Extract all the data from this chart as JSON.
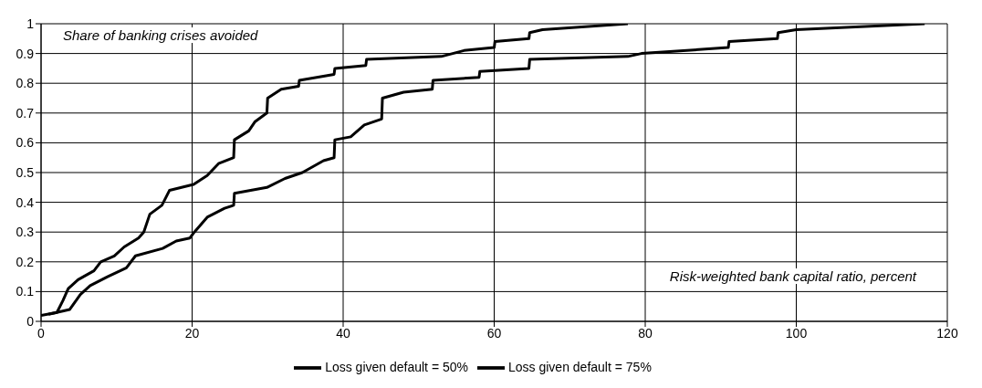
{
  "chart_data": {
    "type": "line",
    "ylabel": "Share of banking crises avoided",
    "xlabel": "Risk-weighted bank capital ratio, percent",
    "xlim": [
      0,
      120
    ],
    "xticks": [
      0,
      20,
      40,
      60,
      80,
      100,
      120
    ],
    "ylim": [
      0,
      1
    ],
    "yticks": [
      0,
      0.1,
      0.2,
      0.3,
      0.4,
      0.5,
      0.6,
      0.7,
      0.8,
      0.9,
      1
    ],
    "grid": true,
    "legend": "bottom",
    "marker": "none",
    "line_style": "solid",
    "series": [
      {
        "name": "Loss given default = 50%",
        "color": "#000000",
        "x": [
          0,
          2.1,
          2.9,
          3.6,
          4.9,
          7,
          7.9,
          9.7,
          11,
          12.9,
          13.6,
          14.4,
          16,
          17,
          20.2,
          22,
          23.5,
          25.5,
          25.6,
          27.5,
          28.3,
          29.9,
          30,
          31.8,
          34.1,
          34.2,
          38.8,
          38.9,
          43,
          43.1,
          53,
          56,
          60,
          60.1,
          64.6,
          64.7,
          66.4,
          77.7
        ],
        "values": [
          0.02,
          0.03,
          0.07,
          0.11,
          0.14,
          0.17,
          0.2,
          0.22,
          0.25,
          0.28,
          0.3,
          0.36,
          0.39,
          0.44,
          0.46,
          0.49,
          0.53,
          0.55,
          0.61,
          0.64,
          0.67,
          0.7,
          0.75,
          0.78,
          0.79,
          0.81,
          0.83,
          0.85,
          0.86,
          0.88,
          0.89,
          0.91,
          0.92,
          0.94,
          0.95,
          0.97,
          0.98,
          1
        ]
      },
      {
        "name": "Loss given default = 75%",
        "color": "#000000",
        "x": [
          1,
          3.8,
          5.2,
          6.5,
          8.8,
          11.3,
          12.5,
          16.1,
          17.9,
          19.7,
          20.3,
          22,
          24.3,
          25.5,
          25.6,
          29.9,
          32.3,
          34.6,
          37.4,
          38.8,
          38.9,
          41,
          42.8,
          45.1,
          45.2,
          48,
          51.8,
          51.9,
          58,
          58.1,
          64.6,
          64.7,
          77.7,
          79.5,
          91,
          91.1,
          97.5,
          97.6,
          100,
          117
        ],
        "values": [
          0.024,
          0.04,
          0.09,
          0.12,
          0.15,
          0.18,
          0.22,
          0.245,
          0.27,
          0.28,
          0.3,
          0.35,
          0.38,
          0.39,
          0.43,
          0.45,
          0.48,
          0.5,
          0.54,
          0.55,
          0.61,
          0.62,
          0.66,
          0.68,
          0.75,
          0.77,
          0.78,
          0.81,
          0.82,
          0.84,
          0.85,
          0.88,
          0.89,
          0.9,
          0.92,
          0.94,
          0.95,
          0.97,
          0.98,
          1
        ]
      }
    ]
  }
}
